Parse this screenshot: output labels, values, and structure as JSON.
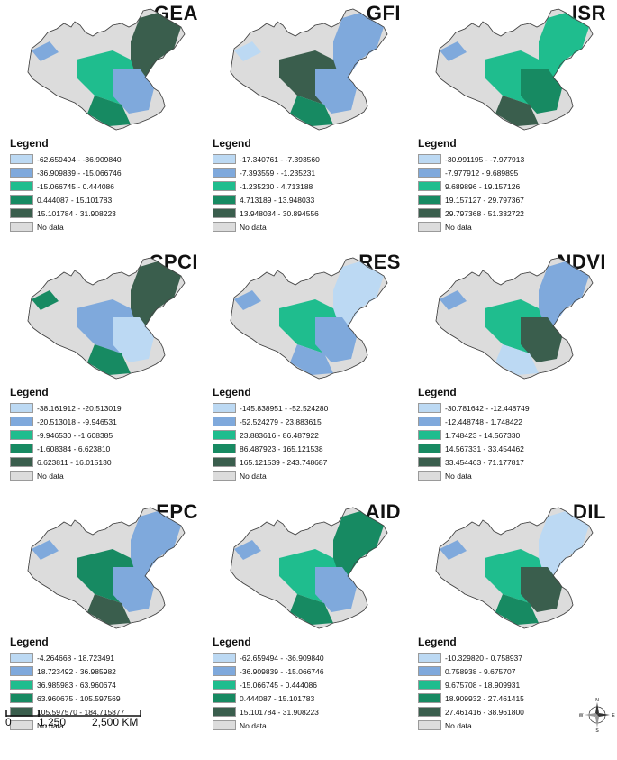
{
  "legend_title": "Legend",
  "no_data_label": "No data",
  "colors": {
    "class1": "#bcd9f3",
    "class2": "#7fa9dc",
    "class3": "#1fbd8e",
    "class4": "#178a62",
    "class5": "#3a5e4d",
    "nodata": "#dcdcdc"
  },
  "panels": [
    {
      "title": "GEA",
      "classes": [
        "-62.659494 - -36.909840",
        "-36.909839 - -15.066746",
        "-15.066745 - 0.444086",
        "0.444087 - 15.101783",
        "15.101784 - 31.908223"
      ]
    },
    {
      "title": "GFI",
      "classes": [
        "-17.340761 - -7.393560",
        "-7.393559 - -1.235231",
        "-1.235230 - 4.713188",
        "4.713189 - 13.948033",
        "13.948034 - 30.894556"
      ]
    },
    {
      "title": "ISR",
      "classes": [
        "-30.991195 - -7.977913",
        "-7.977912 - 9.689895",
        "9.689896 - 19.157126",
        "19.157127 - 29.797367",
        "29.797368 - 51.332722"
      ]
    },
    {
      "title": "CPCI",
      "classes": [
        "-38.161912 - -20.513019",
        "-20.513018 - -9.946531",
        "-9.946530 - -1.608385",
        "-1.608384 - 6.623810",
        "6.623811 - 16.015130"
      ]
    },
    {
      "title": "RES",
      "classes": [
        "-145.838951 - -52.524280",
        "-52.524279 - 23.883615",
        "23.883616 - 86.487922",
        "86.487923 - 165.121538",
        "165.121539 - 243.748687"
      ]
    },
    {
      "title": "NDVI",
      "classes": [
        "-30.781642 - -12.448749",
        "-12.448748 - 1.748422",
        "1.748423 - 14.567330",
        "14.567331 - 33.454462",
        "33.454463 - 71.177817"
      ]
    },
    {
      "title": "EPC",
      "classes": [
        "-4.264668 - 18.723491",
        "18.723492 - 36.985982",
        "36.985983 - 63.960674",
        "63.960675 - 105.597569",
        "105.597570 - 184.715877"
      ]
    },
    {
      "title": "AID",
      "classes": [
        "-62.659494 - -36.909840",
        "-36.909839 - -15.066746",
        "-15.066745 - 0.444086",
        "0.444087 - 15.101783",
        "15.101784 - 31.908223"
      ]
    },
    {
      "title": "DIL",
      "classes": [
        "-10.329820 - 0.758937",
        "0.758938 - 9.675707",
        "9.675708 - 18.909931",
        "18.909932 - 27.461415",
        "27.461416 - 38.961800"
      ]
    }
  ],
  "scalebar": {
    "tick0": "0",
    "tick1": "1,250",
    "tick2": "2,500 KM"
  },
  "compass": {
    "n": "N",
    "e": "E",
    "s": "S",
    "w": "W"
  }
}
